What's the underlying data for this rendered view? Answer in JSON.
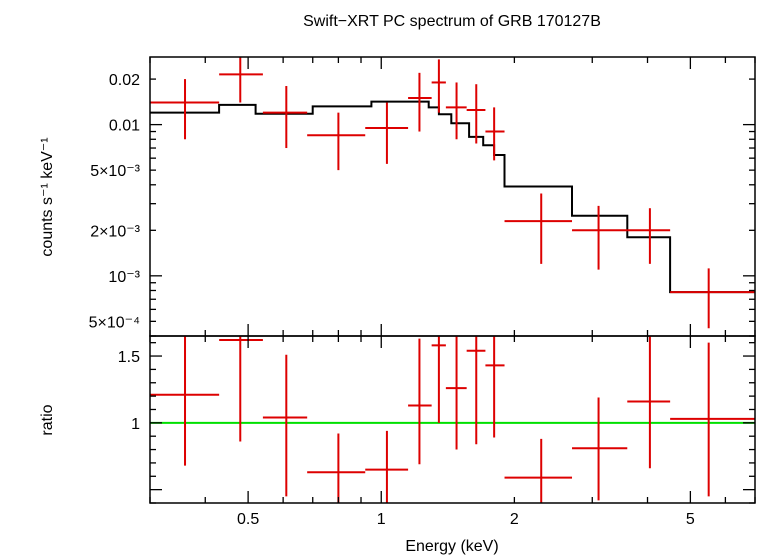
{
  "chart_data": {
    "type": "scatter",
    "title": "Swift−XRT PC spectrum of GRB 170127B",
    "xlabel": "Energy (keV)",
    "xscale": "log",
    "xlim": [
      0.3,
      7.0
    ],
    "x_tick_labels": [
      {
        "v": 0.5,
        "t": "0.5"
      },
      {
        "v": 1,
        "t": "1"
      },
      {
        "v": 2,
        "t": "2"
      },
      {
        "v": 5,
        "t": "5"
      }
    ],
    "colors": {
      "data": "#dd0000",
      "model": "#000000",
      "unity": "#00e000"
    },
    "panels": [
      {
        "name": "spectrum",
        "ylabel": "counts s⁻¹ keV⁻¹",
        "yscale": "log",
        "ylim": [
          0.0004,
          0.028
        ],
        "y_tick_labels": [
          {
            "v": 0.02,
            "t": "0.02"
          },
          {
            "v": 0.01,
            "t": "0.01"
          },
          {
            "v": 0.005,
            "t": "5×10⁻³"
          },
          {
            "v": 0.002,
            "t": "2×10⁻³"
          },
          {
            "v": 0.001,
            "t": "10⁻³"
          },
          {
            "v": 0.0005,
            "t": "5×10⁻⁴"
          }
        ],
        "data": [
          {
            "x0": 0.3,
            "x1": 0.43,
            "x": 0.36,
            "y": 0.014,
            "ylo": 0.008,
            "yhi": 0.02
          },
          {
            "x0": 0.43,
            "x1": 0.54,
            "x": 0.48,
            "y": 0.0215,
            "ylo": 0.014,
            "yhi": 0.029
          },
          {
            "x0": 0.54,
            "x1": 0.68,
            "x": 0.61,
            "y": 0.012,
            "ylo": 0.007,
            "yhi": 0.018
          },
          {
            "x0": 0.68,
            "x1": 0.92,
            "x": 0.8,
            "y": 0.0085,
            "ylo": 0.005,
            "yhi": 0.012
          },
          {
            "x0": 0.92,
            "x1": 1.15,
            "x": 1.03,
            "y": 0.0095,
            "ylo": 0.0055,
            "yhi": 0.014
          },
          {
            "x0": 1.15,
            "x1": 1.3,
            "x": 1.22,
            "y": 0.015,
            "ylo": 0.009,
            "yhi": 0.022
          },
          {
            "x0": 1.3,
            "x1": 1.4,
            "x": 1.35,
            "y": 0.019,
            "ylo": 0.012,
            "yhi": 0.027
          },
          {
            "x0": 1.4,
            "x1": 1.56,
            "x": 1.48,
            "y": 0.013,
            "ylo": 0.008,
            "yhi": 0.019
          },
          {
            "x0": 1.56,
            "x1": 1.72,
            "x": 1.64,
            "y": 0.0125,
            "ylo": 0.0075,
            "yhi": 0.0185
          },
          {
            "x0": 1.72,
            "x1": 1.9,
            "x": 1.8,
            "y": 0.009,
            "ylo": 0.0058,
            "yhi": 0.013
          },
          {
            "x0": 1.9,
            "x1": 2.7,
            "x": 2.3,
            "y": 0.0023,
            "ylo": 0.0012,
            "yhi": 0.0035
          },
          {
            "x0": 2.7,
            "x1": 3.6,
            "x": 3.1,
            "y": 0.002,
            "ylo": 0.0011,
            "yhi": 0.0029
          },
          {
            "x0": 3.6,
            "x1": 4.5,
            "x": 4.05,
            "y": 0.002,
            "ylo": 0.0012,
            "yhi": 0.0028
          },
          {
            "x0": 4.5,
            "x1": 7.0,
            "x": 5.5,
            "y": 0.00078,
            "ylo": 0.00045,
            "yhi": 0.00112
          }
        ],
        "model": [
          {
            "x0": 0.3,
            "x1": 0.43,
            "y": 0.012
          },
          {
            "x0": 0.43,
            "x1": 0.52,
            "y": 0.0135
          },
          {
            "x0": 0.52,
            "x1": 0.7,
            "y": 0.0118
          },
          {
            "x0": 0.7,
            "x1": 0.95,
            "y": 0.0132
          },
          {
            "x0": 0.95,
            "x1": 1.28,
            "y": 0.0142
          },
          {
            "x0": 1.28,
            "x1": 1.35,
            "y": 0.013
          },
          {
            "x0": 1.35,
            "x1": 1.44,
            "y": 0.0117
          },
          {
            "x0": 1.44,
            "x1": 1.58,
            "y": 0.0102
          },
          {
            "x0": 1.58,
            "x1": 1.7,
            "y": 0.0083
          },
          {
            "x0": 1.7,
            "x1": 1.8,
            "y": 0.0073
          },
          {
            "x0": 1.8,
            "x1": 1.9,
            "y": 0.0063
          },
          {
            "x0": 1.9,
            "x1": 2.7,
            "y": 0.0039
          },
          {
            "x0": 2.7,
            "x1": 3.6,
            "y": 0.0025
          },
          {
            "x0": 3.6,
            "x1": 4.5,
            "y": 0.0018
          },
          {
            "x0": 4.5,
            "x1": 7.0,
            "y": 0.00078
          }
        ]
      },
      {
        "name": "ratio",
        "ylabel": "ratio",
        "yscale": "linear",
        "ylim": [
          0.4,
          1.65
        ],
        "y_tick_labels": [
          {
            "v": 1,
            "t": "1"
          },
          {
            "v": 1.5,
            "t": "1.5"
          }
        ],
        "unity_line": 1,
        "data": [
          {
            "x0": 0.3,
            "x1": 0.43,
            "x": 0.36,
            "y": 1.21,
            "ylo": 0.68,
            "yhi": 1.74
          },
          {
            "x0": 0.43,
            "x1": 0.54,
            "x": 0.48,
            "y": 1.62,
            "ylo": 0.86,
            "yhi": 2.0
          },
          {
            "x0": 0.54,
            "x1": 0.68,
            "x": 0.61,
            "y": 1.04,
            "ylo": 0.45,
            "yhi": 1.51
          },
          {
            "x0": 0.68,
            "x1": 0.92,
            "x": 0.8,
            "y": 0.63,
            "ylo": 0.33,
            "yhi": 0.92
          },
          {
            "x0": 0.92,
            "x1": 1.15,
            "x": 1.03,
            "y": 0.65,
            "ylo": 0.37,
            "yhi": 0.94
          },
          {
            "x0": 1.15,
            "x1": 1.3,
            "x": 1.22,
            "y": 1.13,
            "ylo": 0.69,
            "yhi": 1.63
          },
          {
            "x0": 1.3,
            "x1": 1.4,
            "x": 1.35,
            "y": 1.58,
            "ylo": 1.0,
            "yhi": 2.1
          },
          {
            "x0": 1.4,
            "x1": 1.56,
            "x": 1.48,
            "y": 1.26,
            "ylo": 0.8,
            "yhi": 1.77
          },
          {
            "x0": 1.56,
            "x1": 1.72,
            "x": 1.64,
            "y": 1.54,
            "ylo": 0.84,
            "yhi": 2.0
          },
          {
            "x0": 1.72,
            "x1": 1.9,
            "x": 1.8,
            "y": 1.43,
            "ylo": 0.89,
            "yhi": 2.0
          },
          {
            "x0": 1.9,
            "x1": 2.7,
            "x": 2.3,
            "y": 0.59,
            "ylo": 0.3,
            "yhi": 0.88
          },
          {
            "x0": 2.7,
            "x1": 3.6,
            "x": 3.1,
            "y": 0.81,
            "ylo": 0.42,
            "yhi": 1.19
          },
          {
            "x0": 3.6,
            "x1": 4.5,
            "x": 4.05,
            "y": 1.16,
            "ylo": 0.66,
            "yhi": 1.65
          },
          {
            "x0": 4.5,
            "x1": 7.0,
            "x": 5.5,
            "y": 1.03,
            "ylo": 0.45,
            "yhi": 1.6
          }
        ]
      }
    ]
  }
}
